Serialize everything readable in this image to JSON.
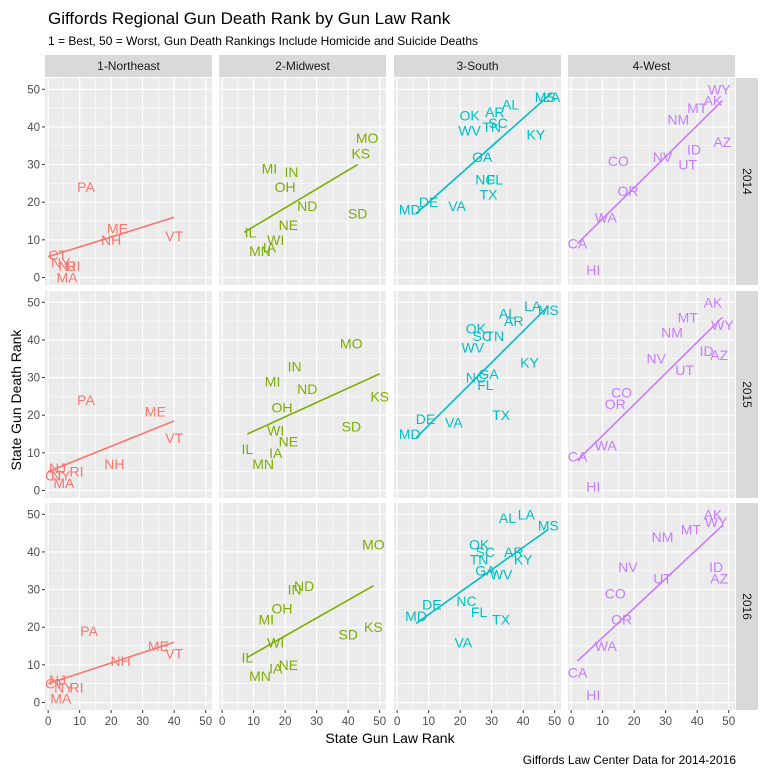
{
  "chart_data": {
    "type": "scatter",
    "title": "Giffords Regional Gun Death Rank by Gun Law Rank",
    "subtitle": "1 = Best, 50 = Worst, Gun Death Rankings Include Homicide and Suicide Deaths",
    "xlabel": "State Gun Law Rank",
    "ylabel": "State Gun Death Rank",
    "caption": "Giffords Law Center Data for 2014-2016",
    "xlim": [
      -1,
      52
    ],
    "ylim": [
      -2,
      53
    ],
    "x_ticks": [
      "0",
      "10",
      "20",
      "30",
      "40",
      "50"
    ],
    "y_ticks": [
      "0",
      "10",
      "20",
      "30",
      "40",
      "50"
    ],
    "grid": true,
    "columns": [
      "1-Northeast",
      "2-Midwest",
      "3-South",
      "4-West"
    ],
    "rows": [
      "2014",
      "2015",
      "2016"
    ],
    "region_colors": [
      "#F8766D",
      "#7CAE00",
      "#00BFC4",
      "#C77CFF"
    ],
    "panels": [
      {
        "region": "1-Northeast",
        "year": "2014",
        "fit": [
          [
            0,
            5.5
          ],
          [
            40,
            16
          ]
        ],
        "points": [
          {
            "label": "PA",
            "x": 12,
            "y": 24
          },
          {
            "label": "ME",
            "x": 22,
            "y": 13
          },
          {
            "label": "NH",
            "x": 20,
            "y": 10
          },
          {
            "label": "VT",
            "x": 40,
            "y": 11
          },
          {
            "label": "CT",
            "x": 3,
            "y": 6
          },
          {
            "label": "NY",
            "x": 4,
            "y": 4
          },
          {
            "label": "NJ",
            "x": 6,
            "y": 3
          },
          {
            "label": "RI",
            "x": 8,
            "y": 3
          },
          {
            "label": "MA",
            "x": 6,
            "y": 0
          }
        ]
      },
      {
        "region": "2-Midwest",
        "year": "2014",
        "fit": [
          [
            7,
            12
          ],
          [
            43,
            30
          ]
        ],
        "points": [
          {
            "label": "MO",
            "x": 46,
            "y": 37
          },
          {
            "label": "KS",
            "x": 44,
            "y": 33
          },
          {
            "label": "MI",
            "x": 15,
            "y": 29
          },
          {
            "label": "IN",
            "x": 22,
            "y": 28
          },
          {
            "label": "OH",
            "x": 20,
            "y": 24
          },
          {
            "label": "ND",
            "x": 27,
            "y": 19
          },
          {
            "label": "SD",
            "x": 43,
            "y": 17
          },
          {
            "label": "NE",
            "x": 21,
            "y": 14
          },
          {
            "label": "IL",
            "x": 9,
            "y": 12
          },
          {
            "label": "WI",
            "x": 17,
            "y": 10
          },
          {
            "label": "IA",
            "x": 15,
            "y": 8
          },
          {
            "label": "MN",
            "x": 12,
            "y": 7
          }
        ]
      },
      {
        "region": "3-South",
        "year": "2014",
        "fit": [
          [
            6,
            17
          ],
          [
            49,
            49
          ]
        ],
        "points": [
          {
            "label": "MS",
            "x": 47,
            "y": 48
          },
          {
            "label": "LA",
            "x": 49,
            "y": 48
          },
          {
            "label": "AL",
            "x": 36,
            "y": 46
          },
          {
            "label": "AR",
            "x": 31,
            "y": 44
          },
          {
            "label": "OK",
            "x": 23,
            "y": 43
          },
          {
            "label": "SC",
            "x": 32,
            "y": 41
          },
          {
            "label": "TN",
            "x": 30,
            "y": 40
          },
          {
            "label": "WV",
            "x": 23,
            "y": 39
          },
          {
            "label": "KY",
            "x": 44,
            "y": 38
          },
          {
            "label": "GA",
            "x": 27,
            "y": 32
          },
          {
            "label": "NC",
            "x": 28,
            "y": 26
          },
          {
            "label": "FL",
            "x": 31,
            "y": 26
          },
          {
            "label": "TX",
            "x": 29,
            "y": 22
          },
          {
            "label": "DE",
            "x": 10,
            "y": 20
          },
          {
            "label": "MD",
            "x": 4,
            "y": 18
          },
          {
            "label": "VA",
            "x": 19,
            "y": 19
          }
        ]
      },
      {
        "region": "4-West",
        "year": "2014",
        "fit": [
          [
            2,
            9
          ],
          [
            48,
            47
          ]
        ],
        "points": [
          {
            "label": "WY",
            "x": 47,
            "y": 50
          },
          {
            "label": "AK",
            "x": 45,
            "y": 47
          },
          {
            "label": "MT",
            "x": 40,
            "y": 45
          },
          {
            "label": "NM",
            "x": 34,
            "y": 42
          },
          {
            "label": "AZ",
            "x": 48,
            "y": 36
          },
          {
            "label": "ID",
            "x": 39,
            "y": 34
          },
          {
            "label": "NV",
            "x": 29,
            "y": 32
          },
          {
            "label": "CO",
            "x": 15,
            "y": 31
          },
          {
            "label": "UT",
            "x": 37,
            "y": 30
          },
          {
            "label": "OR",
            "x": 18,
            "y": 23
          },
          {
            "label": "WA",
            "x": 11,
            "y": 16
          },
          {
            "label": "CA",
            "x": 2,
            "y": 9
          },
          {
            "label": "HI",
            "x": 7,
            "y": 2
          }
        ]
      },
      {
        "region": "1-Northeast",
        "year": "2015",
        "fit": [
          [
            0,
            5
          ],
          [
            40,
            18.5
          ]
        ],
        "points": [
          {
            "label": "PA",
            "x": 12,
            "y": 24
          },
          {
            "label": "ME",
            "x": 34,
            "y": 21
          },
          {
            "label": "VT",
            "x": 40,
            "y": 14
          },
          {
            "label": "NH",
            "x": 21,
            "y": 7
          },
          {
            "label": "NJ",
            "x": 3,
            "y": 6
          },
          {
            "label": "CT",
            "x": 2,
            "y": 4
          },
          {
            "label": "NY",
            "x": 4,
            "y": 4
          },
          {
            "label": "RI",
            "x": 9,
            "y": 5
          },
          {
            "label": "MA",
            "x": 5,
            "y": 2
          }
        ]
      },
      {
        "region": "2-Midwest",
        "year": "2015",
        "fit": [
          [
            8,
            15
          ],
          [
            50,
            31
          ]
        ],
        "points": [
          {
            "label": "MO",
            "x": 41,
            "y": 39
          },
          {
            "label": "KS",
            "x": 50,
            "y": 25
          },
          {
            "label": "IN",
            "x": 23,
            "y": 33
          },
          {
            "label": "MI",
            "x": 16,
            "y": 29
          },
          {
            "label": "ND",
            "x": 27,
            "y": 27
          },
          {
            "label": "OH",
            "x": 19,
            "y": 22
          },
          {
            "label": "SD",
            "x": 41,
            "y": 17
          },
          {
            "label": "WI",
            "x": 17,
            "y": 16
          },
          {
            "label": "NE",
            "x": 21,
            "y": 13
          },
          {
            "label": "IL",
            "x": 8,
            "y": 11
          },
          {
            "label": "IA",
            "x": 17,
            "y": 10
          },
          {
            "label": "MN",
            "x": 13,
            "y": 7
          }
        ]
      },
      {
        "region": "3-South",
        "year": "2015",
        "fit": [
          [
            6,
            14
          ],
          [
            48,
            49
          ]
        ],
        "points": [
          {
            "label": "LA",
            "x": 43,
            "y": 49
          },
          {
            "label": "MS",
            "x": 48,
            "y": 48
          },
          {
            "label": "AL",
            "x": 35,
            "y": 47
          },
          {
            "label": "AR",
            "x": 37,
            "y": 45
          },
          {
            "label": "OK",
            "x": 25,
            "y": 43
          },
          {
            "label": "SC",
            "x": 27,
            "y": 41
          },
          {
            "label": "TN",
            "x": 31,
            "y": 41
          },
          {
            "label": "WV",
            "x": 24,
            "y": 38
          },
          {
            "label": "KY",
            "x": 42,
            "y": 34
          },
          {
            "label": "GA",
            "x": 29,
            "y": 31
          },
          {
            "label": "NC",
            "x": 25,
            "y": 30
          },
          {
            "label": "FL",
            "x": 28,
            "y": 28
          },
          {
            "label": "TX",
            "x": 33,
            "y": 20
          },
          {
            "label": "DE",
            "x": 9,
            "y": 19
          },
          {
            "label": "VA",
            "x": 18,
            "y": 18
          },
          {
            "label": "MD",
            "x": 4,
            "y": 15
          }
        ]
      },
      {
        "region": "4-West",
        "year": "2015",
        "fit": [
          [
            2,
            8
          ],
          [
            48,
            46
          ]
        ],
        "points": [
          {
            "label": "AK",
            "x": 45,
            "y": 50
          },
          {
            "label": "WY",
            "x": 48,
            "y": 44
          },
          {
            "label": "MT",
            "x": 37,
            "y": 46
          },
          {
            "label": "NM",
            "x": 32,
            "y": 42
          },
          {
            "label": "ID",
            "x": 43,
            "y": 37
          },
          {
            "label": "AZ",
            "x": 47,
            "y": 36
          },
          {
            "label": "NV",
            "x": 27,
            "y": 35
          },
          {
            "label": "UT",
            "x": 36,
            "y": 32
          },
          {
            "label": "CO",
            "x": 16,
            "y": 26
          },
          {
            "label": "OR",
            "x": 14,
            "y": 23
          },
          {
            "label": "WA",
            "x": 11,
            "y": 12
          },
          {
            "label": "CA",
            "x": 2,
            "y": 9
          },
          {
            "label": "HI",
            "x": 7,
            "y": 1
          }
        ]
      },
      {
        "region": "1-Northeast",
        "year": "2016",
        "fit": [
          [
            0,
            5
          ],
          [
            40,
            16
          ]
        ],
        "points": [
          {
            "label": "PA",
            "x": 13,
            "y": 19
          },
          {
            "label": "ME",
            "x": 35,
            "y": 15
          },
          {
            "label": "VT",
            "x": 40,
            "y": 13
          },
          {
            "label": "NH",
            "x": 23,
            "y": 11
          },
          {
            "label": "NJ",
            "x": 3,
            "y": 6
          },
          {
            "label": "CT",
            "x": 2,
            "y": 5
          },
          {
            "label": "NY",
            "x": 5,
            "y": 4
          },
          {
            "label": "RI",
            "x": 9,
            "y": 4
          },
          {
            "label": "MA",
            "x": 4,
            "y": 1
          }
        ]
      },
      {
        "region": "2-Midwest",
        "year": "2016",
        "fit": [
          [
            8,
            12
          ],
          [
            48,
            31
          ]
        ],
        "points": [
          {
            "label": "MO",
            "x": 48,
            "y": 42
          },
          {
            "label": "ND",
            "x": 26,
            "y": 31
          },
          {
            "label": "IN",
            "x": 23,
            "y": 30
          },
          {
            "label": "OH",
            "x": 19,
            "y": 25
          },
          {
            "label": "MI",
            "x": 14,
            "y": 22
          },
          {
            "label": "KS",
            "x": 48,
            "y": 20
          },
          {
            "label": "SD",
            "x": 40,
            "y": 18
          },
          {
            "label": "WI",
            "x": 17,
            "y": 16
          },
          {
            "label": "IL",
            "x": 8,
            "y": 12
          },
          {
            "label": "NE",
            "x": 21,
            "y": 10
          },
          {
            "label": "IA",
            "x": 17,
            "y": 9
          },
          {
            "label": "MN",
            "x": 12,
            "y": 7
          }
        ]
      },
      {
        "region": "3-South",
        "year": "2016",
        "fit": [
          [
            6,
            21
          ],
          [
            48,
            46
          ]
        ],
        "points": [
          {
            "label": "MS",
            "x": 48,
            "y": 47
          },
          {
            "label": "AL",
            "x": 35,
            "y": 49
          },
          {
            "label": "LA",
            "x": 41,
            "y": 50
          },
          {
            "label": "OK",
            "x": 26,
            "y": 42
          },
          {
            "label": "SC",
            "x": 28,
            "y": 40
          },
          {
            "label": "AR",
            "x": 37,
            "y": 40
          },
          {
            "label": "TN",
            "x": 26,
            "y": 38
          },
          {
            "label": "KY",
            "x": 40,
            "y": 38
          },
          {
            "label": "GA",
            "x": 28,
            "y": 35
          },
          {
            "label": "WV",
            "x": 33,
            "y": 34
          },
          {
            "label": "NC",
            "x": 22,
            "y": 27
          },
          {
            "label": "DE",
            "x": 11,
            "y": 26
          },
          {
            "label": "FL",
            "x": 26,
            "y": 24
          },
          {
            "label": "MD",
            "x": 6,
            "y": 23
          },
          {
            "label": "TX",
            "x": 33,
            "y": 22
          },
          {
            "label": "VA",
            "x": 21,
            "y": 16
          }
        ]
      },
      {
        "region": "4-West",
        "year": "2016",
        "fit": [
          [
            2,
            11
          ],
          [
            48,
            47
          ]
        ],
        "points": [
          {
            "label": "AK",
            "x": 45,
            "y": 50
          },
          {
            "label": "WY",
            "x": 46,
            "y": 48
          },
          {
            "label": "MT",
            "x": 38,
            "y": 46
          },
          {
            "label": "NM",
            "x": 29,
            "y": 44
          },
          {
            "label": "NV",
            "x": 18,
            "y": 36
          },
          {
            "label": "ID",
            "x": 46,
            "y": 36
          },
          {
            "label": "UT",
            "x": 29,
            "y": 33
          },
          {
            "label": "AZ",
            "x": 47,
            "y": 33
          },
          {
            "label": "CO",
            "x": 14,
            "y": 29
          },
          {
            "label": "OR",
            "x": 16,
            "y": 22
          },
          {
            "label": "WA",
            "x": 11,
            "y": 15
          },
          {
            "label": "CA",
            "x": 2,
            "y": 8
          },
          {
            "label": "HI",
            "x": 7,
            "y": 2
          }
        ]
      }
    ]
  }
}
